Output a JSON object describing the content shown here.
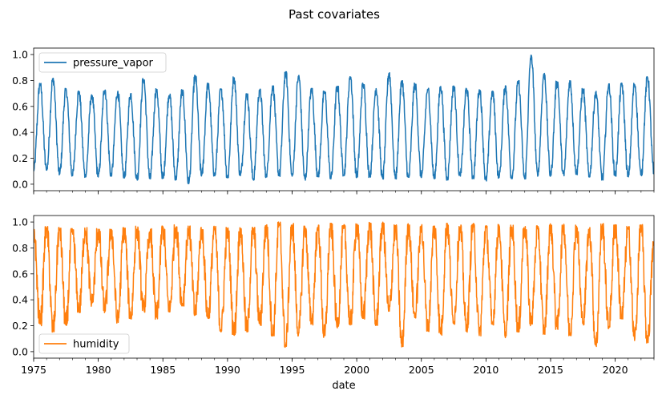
{
  "chart_data": {
    "type": "line",
    "title": "Past covariates",
    "xlabel": "date",
    "xlim": [
      1975.0,
      2023.0
    ],
    "x_major_ticks": [
      1975,
      1980,
      1985,
      1990,
      1995,
      2000,
      2005,
      2010,
      2015,
      2020
    ],
    "x_tick_labels": [
      "1975",
      "1980",
      "1985",
      "1990",
      "1995",
      "2000",
      "2005",
      "2010",
      "2015",
      "2020"
    ],
    "x_minor_tick_step": 1,
    "panels": [
      {
        "name": "pressure_vapor",
        "legend_position": "upper-left",
        "ylim": [
          -0.05,
          1.05
        ],
        "y_ticks": [
          0.0,
          0.2,
          0.4,
          0.6,
          0.8,
          1.0
        ],
        "y_tick_labels": [
          "0.0",
          "0.2",
          "0.4",
          "0.6",
          "0.8",
          "1.0"
        ],
        "series": [
          {
            "name": "pressure_vapor",
            "color": "#1f77b4",
            "x": [
              1975.0,
              1975.5,
              1976.0,
              1976.5,
              1977.0,
              1977.5,
              1978.0,
              1978.5,
              1979.0,
              1979.5,
              1980.0,
              1980.5,
              1981.0,
              1981.5,
              1982.0,
              1982.5,
              1983.0,
              1983.5,
              1984.0,
              1984.5,
              1985.0,
              1985.5,
              1986.0,
              1986.5,
              1987.0,
              1987.5,
              1988.0,
              1988.5,
              1989.0,
              1989.5,
              1990.0,
              1990.5,
              1991.0,
              1991.5,
              1992.0,
              1992.5,
              1993.0,
              1993.5,
              1994.0,
              1994.5,
              1995.0,
              1995.5,
              1996.0,
              1996.5,
              1997.0,
              1997.5,
              1998.0,
              1998.5,
              1999.0,
              1999.5,
              2000.0,
              2000.5,
              2001.0,
              2001.5,
              2002.0,
              2002.5,
              2003.0,
              2003.5,
              2004.0,
              2004.5,
              2005.0,
              2005.5,
              2006.0,
              2006.5,
              2007.0,
              2007.5,
              2008.0,
              2008.5,
              2009.0,
              2009.5,
              2010.0,
              2010.5,
              2011.0,
              2011.5,
              2012.0,
              2012.5,
              2013.0,
              2013.5,
              2014.0,
              2014.5,
              2015.0,
              2015.5,
              2016.0,
              2016.5,
              2017.0,
              2017.5,
              2018.0,
              2018.5,
              2019.0,
              2019.5,
              2020.0,
              2020.5,
              2021.0,
              2021.5,
              2022.0,
              2022.5,
              2023.0
            ],
            "y": [
              0.1,
              0.78,
              0.1,
              0.82,
              0.07,
              0.74,
              0.06,
              0.72,
              0.05,
              0.7,
              0.05,
              0.74,
              0.06,
              0.72,
              0.04,
              0.7,
              0.03,
              0.82,
              0.04,
              0.74,
              0.04,
              0.7,
              0.03,
              0.73,
              0.0,
              0.84,
              0.06,
              0.78,
              0.06,
              0.74,
              0.05,
              0.83,
              0.06,
              0.7,
              0.03,
              0.74,
              0.05,
              0.76,
              0.06,
              0.87,
              0.05,
              0.84,
              0.03,
              0.74,
              0.05,
              0.72,
              0.04,
              0.76,
              0.06,
              0.84,
              0.05,
              0.78,
              0.05,
              0.74,
              0.04,
              0.86,
              0.04,
              0.8,
              0.04,
              0.78,
              0.05,
              0.74,
              0.04,
              0.76,
              0.03,
              0.76,
              0.05,
              0.74,
              0.04,
              0.74,
              0.02,
              0.72,
              0.04,
              0.76,
              0.04,
              0.8,
              0.04,
              1.0,
              0.06,
              0.86,
              0.06,
              0.8,
              0.06,
              0.8,
              0.07,
              0.74,
              0.05,
              0.72,
              0.03,
              0.78,
              0.06,
              0.78,
              0.05,
              0.78,
              0.06,
              0.83,
              0.08
            ]
          }
        ]
      },
      {
        "name": "humidity",
        "legend_position": "lower-left",
        "ylim": [
          -0.05,
          1.05
        ],
        "y_ticks": [
          0.0,
          0.2,
          0.4,
          0.6,
          0.8,
          1.0
        ],
        "y_tick_labels": [
          "0.0",
          "0.2",
          "0.4",
          "0.6",
          "0.8",
          "1.0"
        ],
        "series": [
          {
            "name": "humidity",
            "color": "#ff7f0e",
            "x": [
              1975.0,
              1975.5,
              1976.0,
              1976.5,
              1977.0,
              1977.5,
              1978.0,
              1978.5,
              1979.0,
              1979.5,
              1980.0,
              1980.5,
              1981.0,
              1981.5,
              1982.0,
              1982.5,
              1983.0,
              1983.5,
              1984.0,
              1984.5,
              1985.0,
              1985.5,
              1986.0,
              1986.5,
              1987.0,
              1987.5,
              1988.0,
              1988.5,
              1989.0,
              1989.5,
              1990.0,
              1990.5,
              1991.0,
              1991.5,
              1992.0,
              1992.5,
              1993.0,
              1993.5,
              1994.0,
              1994.5,
              1995.0,
              1995.5,
              1996.0,
              1996.5,
              1997.0,
              1997.5,
              1998.0,
              1998.5,
              1999.0,
              1999.5,
              2000.0,
              2000.5,
              2001.0,
              2001.5,
              2002.0,
              2002.5,
              2003.0,
              2003.5,
              2004.0,
              2004.5,
              2005.0,
              2005.5,
              2006.0,
              2006.5,
              2007.0,
              2007.5,
              2008.0,
              2008.5,
              2009.0,
              2009.5,
              2010.0,
              2010.5,
              2011.0,
              2011.5,
              2012.0,
              2012.5,
              2013.0,
              2013.5,
              2014.0,
              2014.5,
              2015.0,
              2015.5,
              2016.0,
              2016.5,
              2017.0,
              2017.5,
              2018.0,
              2018.5,
              2019.0,
              2019.5,
              2020.0,
              2020.5,
              2021.0,
              2021.5,
              2022.0,
              2022.5,
              2023.0
            ],
            "y": [
              0.95,
              0.2,
              0.97,
              0.15,
              0.96,
              0.2,
              0.95,
              0.3,
              0.96,
              0.35,
              0.95,
              0.3,
              0.95,
              0.22,
              0.96,
              0.25,
              0.97,
              0.3,
              0.95,
              0.25,
              0.97,
              0.3,
              0.98,
              0.35,
              0.97,
              0.28,
              0.96,
              0.25,
              0.97,
              0.15,
              0.96,
              0.12,
              0.97,
              0.15,
              0.96,
              0.2,
              0.98,
              0.12,
              1.0,
              0.03,
              0.99,
              0.12,
              0.97,
              0.2,
              0.98,
              0.1,
              0.99,
              0.18,
              0.98,
              0.2,
              0.99,
              0.25,
              1.0,
              0.2,
              1.0,
              0.3,
              0.98,
              0.03,
              0.99,
              0.25,
              0.98,
              0.15,
              0.97,
              0.12,
              0.99,
              0.2,
              0.98,
              0.15,
              0.99,
              0.12,
              0.98,
              0.2,
              0.99,
              0.1,
              0.98,
              0.15,
              0.99,
              0.2,
              0.98,
              0.12,
              0.99,
              0.17,
              0.99,
              0.12,
              0.98,
              0.2,
              0.96,
              0.03,
              0.99,
              0.17,
              0.98,
              0.25,
              0.97,
              0.08,
              0.98,
              0.06,
              0.85
            ]
          }
        ]
      }
    ]
  }
}
